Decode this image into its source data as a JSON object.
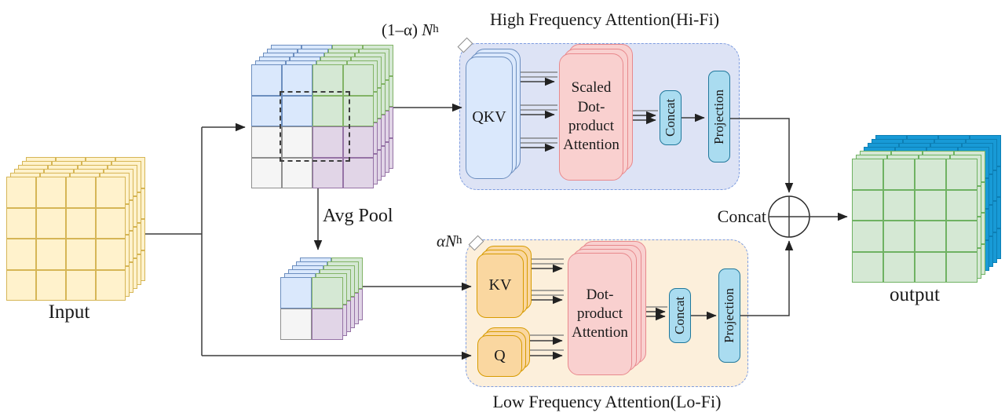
{
  "diagram": {
    "input": {
      "label": "Input"
    },
    "avg_pool_label": "Avg Pool",
    "hifi": {
      "title": "High Frequency Attention(Hi-Fi)",
      "heads_prefix": "(1–α)",
      "heads_var": "N",
      "heads_sub": "h",
      "qkv_label": "QKV",
      "attention_label": "Scaled\nDot-\nproduct\nAttention",
      "concat_label": "Concat",
      "projection_label": "Projection"
    },
    "lofi": {
      "title": "Low Frequency Attention(Lo-Fi)",
      "heads_prefix": "α",
      "heads_var": "N",
      "heads_sub": "h",
      "kv_label": "KV",
      "q_label": "Q",
      "attention_label": "Dot-\nproduct\nAttention",
      "concat_label": "Concat",
      "projection_label": "Projection"
    },
    "merge": {
      "concat_label": "Concat"
    },
    "output": {
      "label": "output"
    }
  },
  "colors": {
    "yellow_fill": "#fff2cc",
    "yellow_stroke": "#d6b656",
    "blue_fill": "#dae8fc",
    "blue_stroke": "#6c8ebf",
    "green_fill": "#d5e8d4",
    "green_stroke": "#82b366",
    "gray_fill": "#f5f5f5",
    "gray_stroke": "#8f8f8f",
    "purple_fill": "#e1d5e7",
    "purple_stroke": "#9673a6",
    "pink_fill": "#f9d0cf",
    "pink_stroke": "#e8898d",
    "orange_fill": "#fad7a0",
    "orange_stroke": "#d79b00",
    "cyan_fill": "#aadcf0",
    "cyan_stroke": "#20789c",
    "outblue_fill": "#189ad6",
    "outblue_stroke": "#0d7fb5",
    "outgreen_fill": "#d5e8d4",
    "outgreen_stroke": "#6fb262",
    "hifi_bg": "#dde3f5",
    "hifi_border": "#7d9ce0",
    "lofi_bg": "#fcefdb",
    "lofi_border": "#7d9ce0",
    "wire": "#3c3c3c",
    "wire_gray": "#737373",
    "text": "#1a1a1a"
  }
}
